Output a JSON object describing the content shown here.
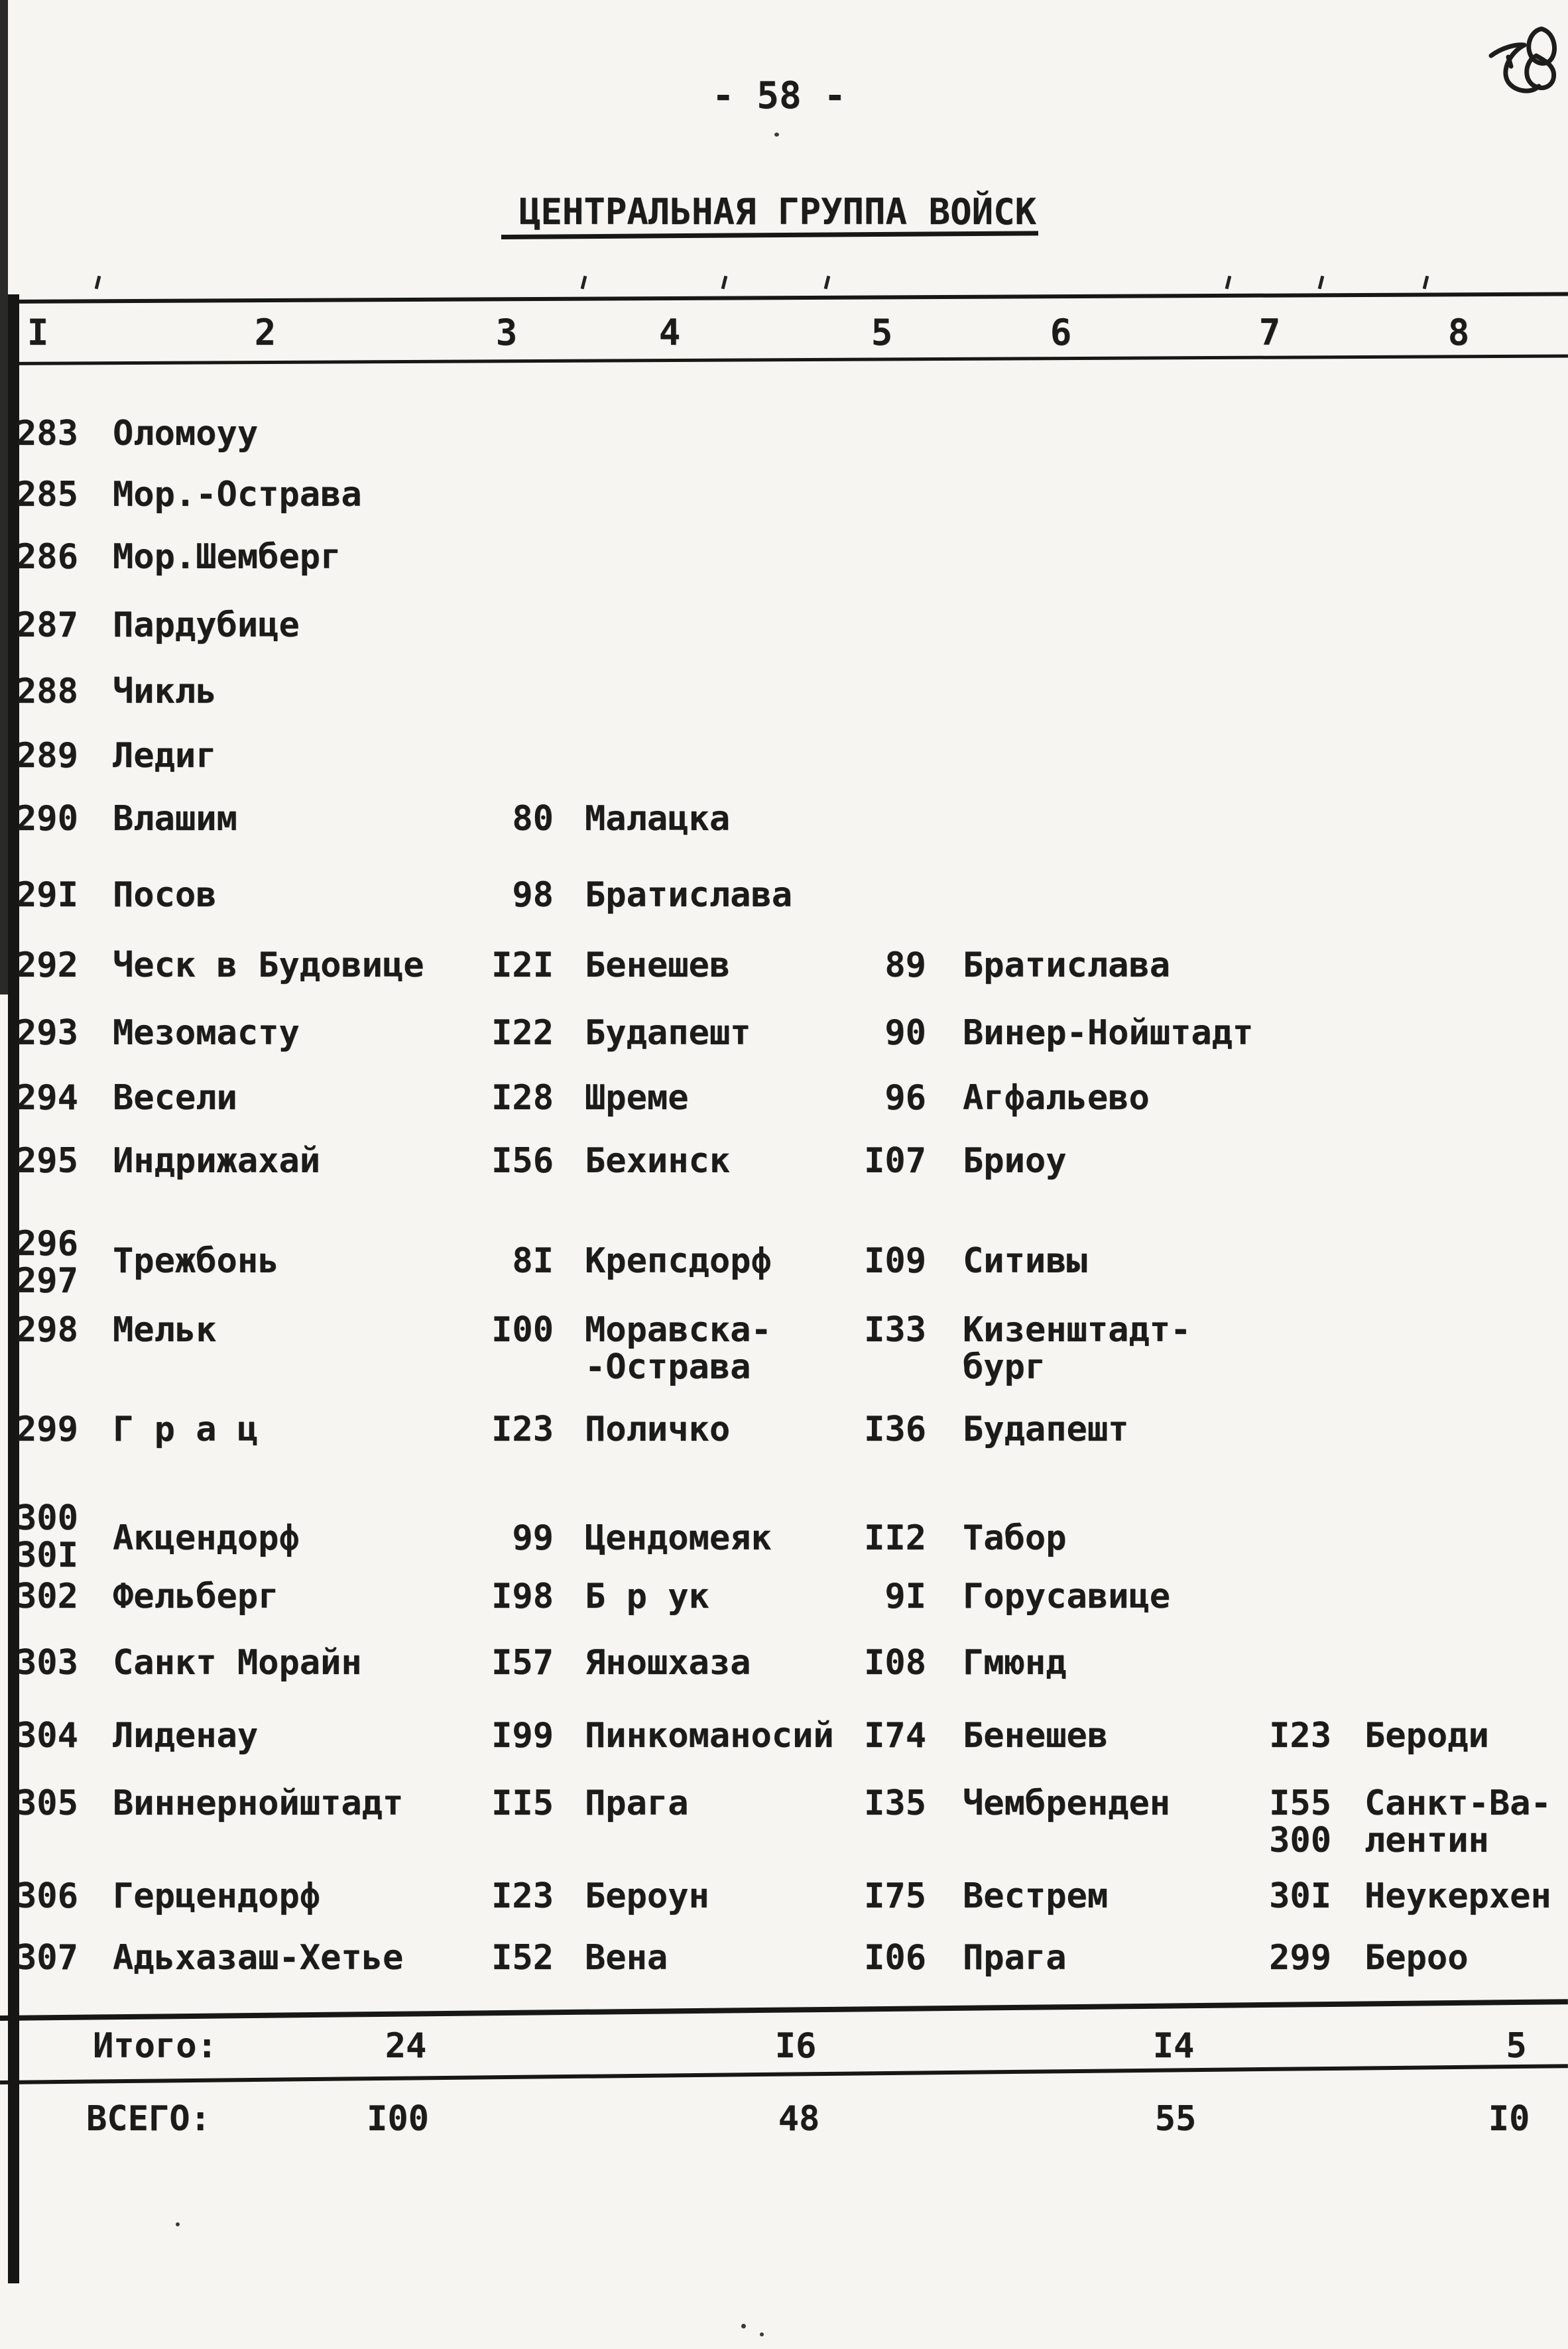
{
  "page": {
    "page_number": "- 58 -",
    "handwritten_number": "58",
    "title": "ЦЕНТРАЛЬНАЯ ГРУППА ВОЙСК"
  },
  "table": {
    "column_headers": [
      "I",
      "2",
      "3",
      "4",
      "5",
      "6",
      "7",
      "8"
    ],
    "rows": [
      {
        "num": "283",
        "name": "Оломоуу"
      },
      {
        "num": "285",
        "name": "Мор.-Острава"
      },
      {
        "num": "286",
        "name": "Мор.Шемберг"
      },
      {
        "num": "287",
        "name": "Пардубице"
      },
      {
        "num": "288",
        "name": "Чикль"
      },
      {
        "num": "289",
        "name": "Ледиг"
      },
      {
        "num": "290",
        "name": "Влашим",
        "c3": "80",
        "c4": "Малацка"
      },
      {
        "num": "29I",
        "name": "Посов",
        "c3": "98",
        "c4": "Братислава"
      },
      {
        "num": "292",
        "name": "Ческ в Будовице",
        "c3": "I2I",
        "c4": "Бенешев",
        "c5": "89",
        "c6": "Братислава"
      },
      {
        "num": "293",
        "name": "Мезомасту",
        "c3": "I22",
        "c4": "Будапешт",
        "c5": "90",
        "c6": "Винер-Нойштадт"
      },
      {
        "num": "294",
        "name": "Весели",
        "c3": "I28",
        "c4": "Шреме",
        "c5": "96",
        "c6": "Агфальево"
      },
      {
        "num": "295",
        "name": "Индрижахай",
        "c3": "I56",
        "c4": "Бехинск",
        "c5": "I07",
        "c6": "Бриоу"
      },
      {
        "num": "296\n297",
        "name": "Трежбонь",
        "c3": "8I",
        "c4": "Крепсдорф",
        "c5": "I09",
        "c6": "Ситивы"
      },
      {
        "num": "298",
        "name": "Мельк",
        "c3": "I00",
        "c4": "Моравска-\n-Острава",
        "c5": "I33",
        "c6": "Кизенштадт-\nбург"
      },
      {
        "num": "299",
        "name": "Г р а ц",
        "c3": "I23",
        "c4": "Поличко",
        "c5": "I36",
        "c6": "Будапешт"
      },
      {
        "num": "300\n30I",
        "name": "Акцендорф",
        "c3": "99",
        "c4": "Цендомеяк",
        "c5": "II2",
        "c6": "Табор"
      },
      {
        "num": "302",
        "name": "Фельберг",
        "c3": "I98",
        "c4": "Б р ук",
        "c5": "9I",
        "c6": "Горусавице"
      },
      {
        "num": "303",
        "name": "Санкт Морайн",
        "c3": "I57",
        "c4": "Яношхаза",
        "c5": "I08",
        "c6": "Гмюнд"
      },
      {
        "num": "304",
        "name": "Лиденау",
        "c3": "I99",
        "c4": "Пинкоманосий",
        "c5": "I74",
        "c6": "Бенешев",
        "c7": "I23",
        "c8": "Бероди"
      },
      {
        "num": "305",
        "name": "Виннернойштадт",
        "c3": "II5",
        "c4": "Прага",
        "c5": "I35",
        "c6": "Чембренден",
        "c7": "I55\n300",
        "c8": "Санкт-Ва-\nлентин"
      },
      {
        "num": "306",
        "name": "Герцендорф",
        "c3": "I23",
        "c4": "Бероун",
        "c5": "I75",
        "c6": "Вестрем",
        "c7": "30I",
        "c8": "Неукерхен"
      },
      {
        "num": "307",
        "name": "Адьхазаш-Хетье",
        "c3": "I52",
        "c4": "Вена",
        "c5": "I06",
        "c6": "Прага",
        "c7": "299",
        "c8": "Бероо"
      }
    ],
    "totals": [
      {
        "label": "Итого:",
        "values": [
          "24",
          "I6",
          "I4",
          "5"
        ]
      },
      {
        "label": "ВСЕГО:",
        "values": [
          "I00",
          "48",
          "55",
          "I0"
        ]
      }
    ]
  },
  "colors": {
    "ink": "#1b1b1a",
    "paper": "#f6f5f1"
  }
}
